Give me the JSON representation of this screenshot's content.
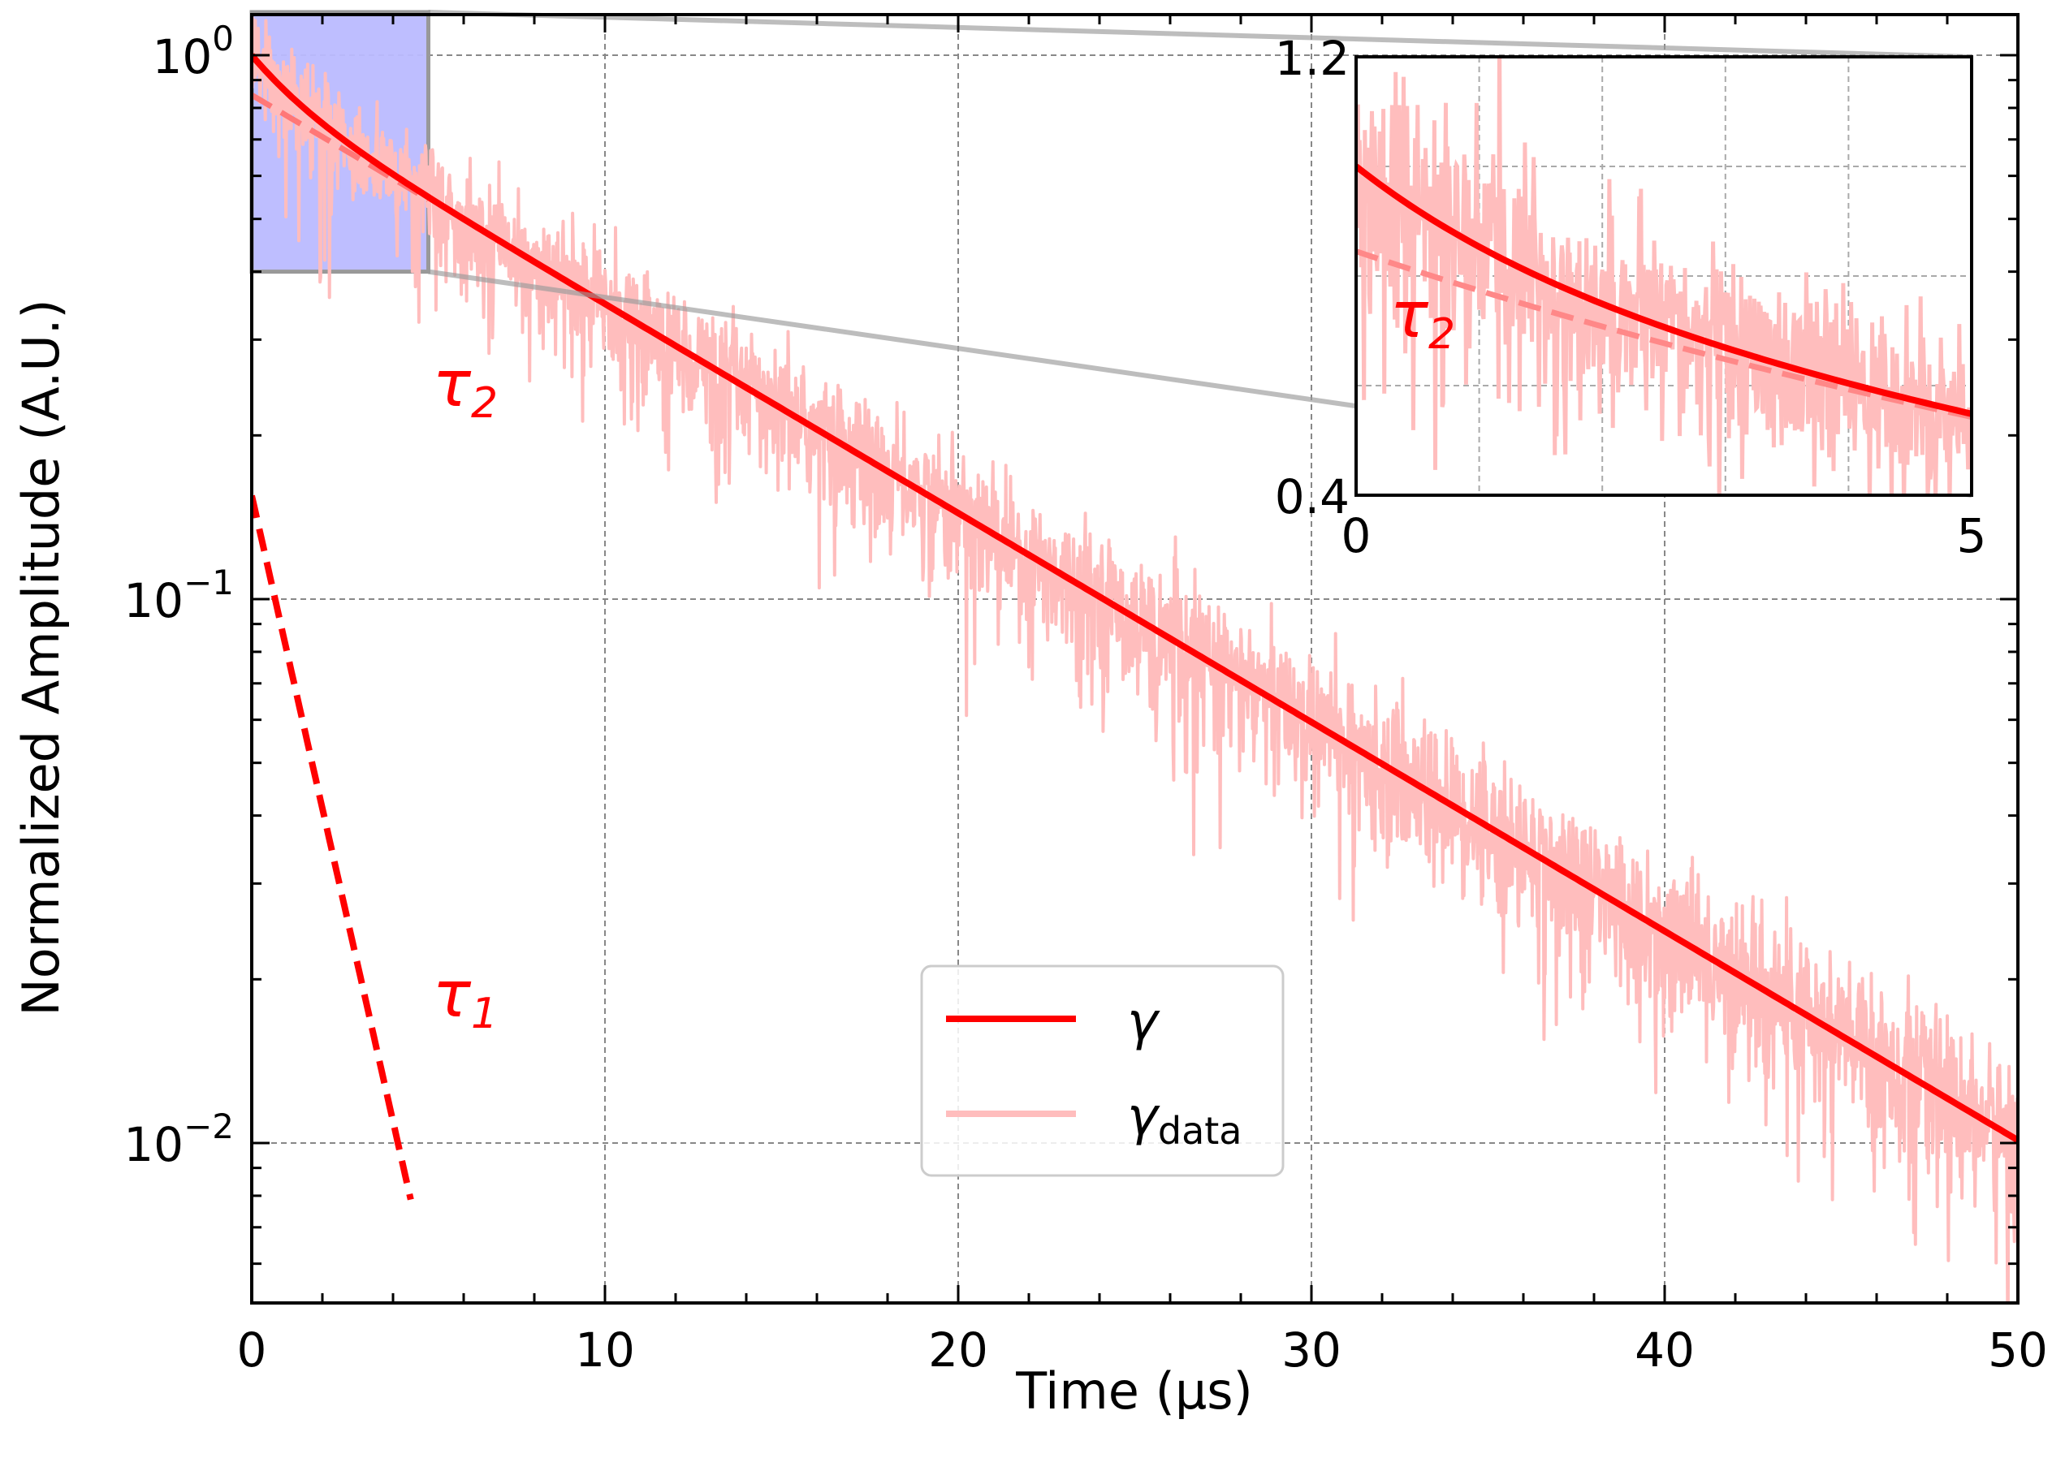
{
  "chart_data": {
    "type": "line",
    "xlabel": "Time (μs)",
    "ylabel": "Normalized Amplitude (A.U.)",
    "xlim": [
      0,
      50
    ],
    "ylim": [
      0.0055,
      1.2
    ],
    "yscale": "log",
    "grid": true,
    "x_ticks": [
      {
        "value": 0,
        "label": "0"
      },
      {
        "value": 10,
        "label": "10"
      },
      {
        "value": 20,
        "label": "20"
      },
      {
        "value": 30,
        "label": "30"
      },
      {
        "value": 40,
        "label": "40"
      },
      {
        "value": 50,
        "label": "50"
      }
    ],
    "y_ticks": [
      {
        "value": 1,
        "base": "10",
        "exp": "0"
      },
      {
        "value": 0.1,
        "base": "10",
        "exp": "−1"
      },
      {
        "value": 0.01,
        "base": "10",
        "exp": "−2"
      }
    ],
    "series": [
      {
        "name": "γ",
        "kind": "fit",
        "color": "#ff0000",
        "model": "sum_of_exponentials",
        "components": [
          {
            "name": "τ₁",
            "amplitude": 0.155,
            "tau_us": 1.51
          },
          {
            "name": "τ₂",
            "amplitude": 0.845,
            "tau_us": 11.3
          }
        ]
      },
      {
        "name": "γ data",
        "kind": "data",
        "color": "#ffbdbd",
        "noise_level": 0.12
      }
    ],
    "components_dashed": [
      {
        "label_base": "τ",
        "label_sub": "1",
        "amplitude": 0.155,
        "tau_us": 1.51,
        "x_range": [
          0,
          4.5
        ]
      },
      {
        "label_base": "τ",
        "label_sub": "2",
        "amplitude": 0.845,
        "tau_us": 11.3,
        "x_range": [
          0,
          5
        ]
      }
    ],
    "legend": {
      "position": "lower-center",
      "entries": [
        {
          "base": "γ",
          "sub": ""
        },
        {
          "base": "γ",
          "sub": "data"
        }
      ]
    },
    "zoom_region": {
      "x": [
        0,
        5
      ],
      "y": [
        0.4,
        1.2
      ],
      "color": "#bbbbff"
    },
    "inset": {
      "position": "top-right",
      "xlim": [
        0,
        5
      ],
      "ylim": [
        0.4,
        1.2
      ],
      "yscale": "linear",
      "x_tick_labels": [
        {
          "value": 0,
          "label": "0"
        },
        {
          "value": 5,
          "label": "5"
        }
      ],
      "y_tick_labels": [
        {
          "value": 1.2,
          "label": "1.2"
        },
        {
          "value": 0.4,
          "label": "0.4"
        }
      ],
      "annotation": {
        "base": "τ",
        "sub": "2"
      }
    }
  }
}
